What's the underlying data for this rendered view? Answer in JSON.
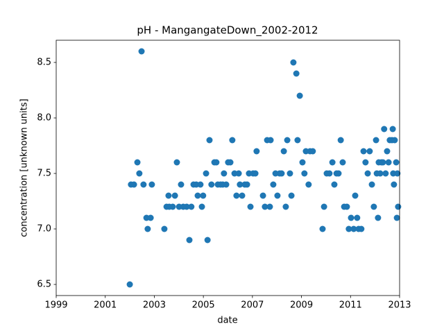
{
  "chart_data": {
    "type": "scatter",
    "title": "pH - MangangateDown_2002-2012",
    "x_label": "date",
    "y_label": "concentration [unknown units]",
    "color": "#1f77b4",
    "xlim": [
      1999,
      2013
    ],
    "xticks": [
      1999,
      2001,
      2003,
      2005,
      2007,
      2009,
      2011,
      2013
    ],
    "ylim": [
      6.4,
      8.7
    ],
    "yticks": [
      6.5,
      {
        "value": 7,
        "label": "7.0"
      },
      7.5,
      {
        "value": 8,
        "label": "8.0"
      },
      8.5
    ],
    "x": [
      2002.0,
      2002.05,
      2002.17,
      2002.31,
      2002.39,
      2002.48,
      2002.56,
      2002.68,
      2002.73,
      2002.85,
      2002.9,
      2003.41,
      2003.5,
      2003.58,
      2003.61,
      2003.75,
      2003.84,
      2003.92,
      2004.01,
      2004.09,
      2004.18,
      2004.32,
      2004.43,
      2004.51,
      2004.6,
      2004.71,
      2004.77,
      2004.88,
      2004.94,
      2004.99,
      2005.11,
      2005.17,
      2005.25,
      2005.33,
      2005.45,
      2005.53,
      2005.59,
      2005.7,
      2005.79,
      2005.84,
      2005.93,
      2006.01,
      2006.1,
      2006.18,
      2006.27,
      2006.35,
      2006.44,
      2006.49,
      2006.58,
      2006.69,
      2006.78,
      2006.86,
      2006.92,
      2007.03,
      2007.12,
      2007.17,
      2007.43,
      2007.51,
      2007.6,
      2007.71,
      2007.74,
      2007.85,
      2007.94,
      2008.02,
      2008.11,
      2008.19,
      2008.28,
      2008.36,
      2008.42,
      2008.53,
      2008.59,
      2008.67,
      2008.79,
      2008.84,
      2008.93,
      2009.04,
      2009.12,
      2009.18,
      2009.29,
      2009.35,
      2009.46,
      2009.86,
      2009.92,
      2010.03,
      2010.14,
      2010.26,
      2010.34,
      2010.43,
      2010.51,
      2010.6,
      2010.68,
      2010.74,
      2010.85,
      2010.93,
      2011.02,
      2011.13,
      2011.19,
      2011.27,
      2011.33,
      2011.44,
      2011.53,
      2011.61,
      2011.7,
      2011.78,
      2011.87,
      2011.95,
      2012.04,
      2012.07,
      2012.12,
      2012.15,
      2012.21,
      2012.26,
      2012.32,
      2012.37,
      2012.43,
      2012.49,
      2012.55,
      2012.6,
      2012.69,
      2012.72,
      2012.74,
      2012.77,
      2012.8,
      2012.86,
      2012.89,
      2012.91,
      2012.94
    ],
    "values": [
      6.5,
      7.4,
      7.4,
      7.6,
      7.5,
      8.6,
      7.4,
      7.1,
      7.0,
      7.1,
      7.4,
      7.0,
      7.2,
      7.3,
      7.2,
      7.2,
      7.3,
      7.6,
      7.2,
      7.4,
      7.2,
      7.2,
      6.9,
      7.2,
      7.4,
      7.4,
      7.3,
      7.4,
      7.2,
      7.3,
      7.5,
      6.9,
      7.8,
      7.4,
      7.6,
      7.6,
      7.4,
      7.4,
      7.4,
      7.5,
      7.4,
      7.6,
      7.6,
      7.8,
      7.5,
      7.3,
      7.5,
      7.4,
      7.3,
      7.4,
      7.4,
      7.5,
      7.2,
      7.5,
      7.5,
      7.7,
      7.3,
      7.2,
      7.8,
      7.2,
      7.8,
      7.4,
      7.5,
      7.3,
      7.5,
      7.5,
      7.7,
      7.2,
      7.8,
      7.5,
      7.3,
      8.5,
      8.4,
      7.8,
      8.2,
      7.6,
      7.5,
      7.7,
      7.4,
      7.7,
      7.7,
      7.0,
      7.2,
      7.5,
      7.5,
      7.6,
      7.4,
      7.5,
      7.5,
      7.8,
      7.6,
      7.2,
      7.2,
      7.0,
      7.1,
      7.0,
      7.3,
      7.1,
      7.0,
      7.0,
      7.7,
      7.6,
      7.5,
      7.7,
      7.4,
      7.2,
      7.8,
      7.5,
      7.1,
      7.6,
      7.5,
      7.6,
      7.6,
      7.9,
      7.5,
      7.7,
      7.6,
      7.8,
      7.8,
      7.9,
      7.5,
      7.4,
      7.8,
      7.6,
      7.1,
      7.5,
      7.2
    ]
  }
}
